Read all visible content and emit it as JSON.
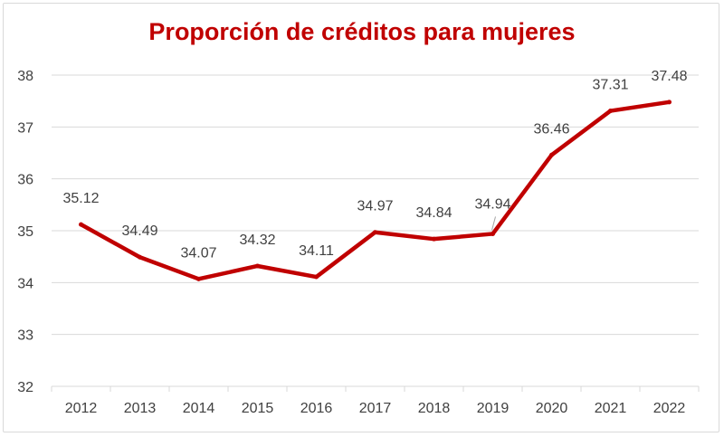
{
  "chart_data": {
    "type": "line",
    "title": "Proporción de créditos para mujeres",
    "categories": [
      "2012",
      "2013",
      "2014",
      "2015",
      "2016",
      "2017",
      "2018",
      "2019",
      "2020",
      "2021",
      "2022"
    ],
    "series": [
      {
        "name": "Proporción de créditos para mujeres",
        "values": [
          35.12,
          34.49,
          34.07,
          34.32,
          34.11,
          34.97,
          34.84,
          34.94,
          36.46,
          37.31,
          37.48
        ],
        "data_labels": [
          "35.12",
          "34.49",
          "34.07",
          "34.32",
          "34.11",
          "34.97",
          "34.84",
          "34.94",
          "36.46",
          "37.31",
          "37.48"
        ]
      }
    ],
    "yticks": [
      "32",
      "33",
      "34",
      "35",
      "36",
      "37",
      "38"
    ],
    "ylim": [
      32,
      38
    ],
    "grid": true,
    "xlabel": "",
    "ylabel": "",
    "colors": {
      "line": "#c00000",
      "title": "#c00000",
      "grid": "#d9d9d9",
      "text": "#404040"
    }
  }
}
